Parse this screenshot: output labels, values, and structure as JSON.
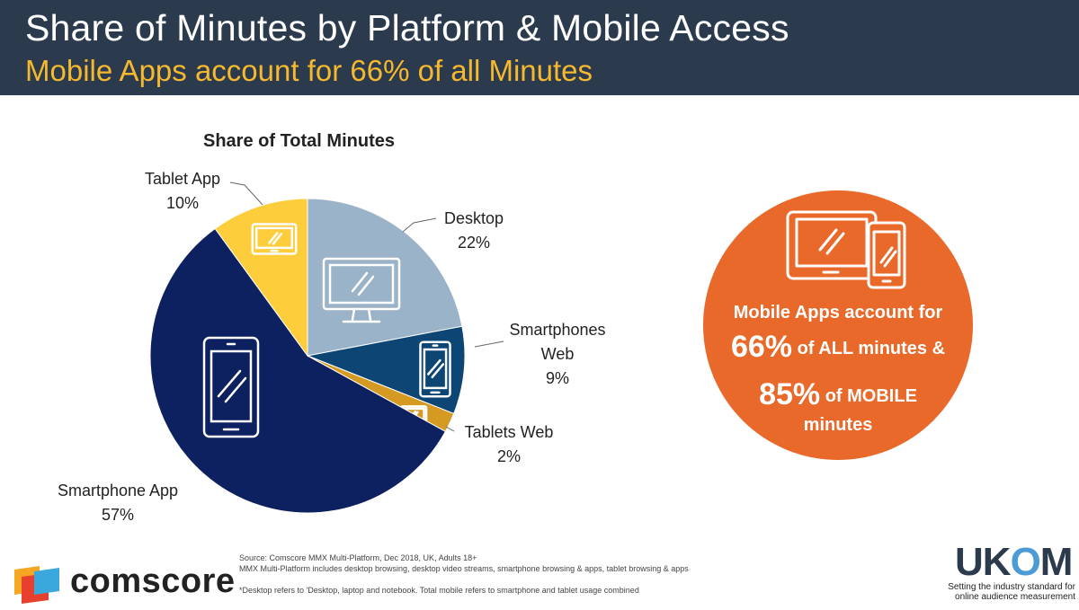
{
  "header": {
    "title": "Share of Minutes by Platform & Mobile Access",
    "subtitle": "Mobile Apps account for 66% of all Minutes"
  },
  "chart_data": {
    "type": "pie",
    "title": "Share of Total Minutes",
    "slices": [
      {
        "name": "Desktop",
        "value": 22,
        "label_lines": [
          "Desktop",
          "22%"
        ],
        "color": "#9bb3c8",
        "icon": "desktop-monitor-icon"
      },
      {
        "name": "Smartphones Web",
        "value": 9,
        "label_lines": [
          "Smartphones",
          "Web",
          "9%"
        ],
        "color": "#0d4674",
        "icon": "smartphone-icon"
      },
      {
        "name": "Tablets Web",
        "value": 2,
        "label_lines": [
          "Tablets Web",
          "2%"
        ],
        "color": "#d49a22",
        "icon": "tablet-icon"
      },
      {
        "name": "Smartphone App",
        "value": 57,
        "label_lines": [
          "Smartphone App",
          "57%"
        ],
        "color": "#0d2060",
        "icon": "smartphone-icon"
      },
      {
        "name": "Tablet App",
        "value": 10,
        "label_lines": [
          "Tablet App",
          "10%"
        ],
        "color": "#fdcd3c",
        "icon": "tablet-icon"
      }
    ]
  },
  "callout": {
    "line1": "Mobile Apps account for",
    "line2_big": "66%",
    "line2_rest": " of ALL minutes &",
    "line3_big": "85%",
    "line3_rest": " of MOBILE",
    "line4": "minutes",
    "color": "#e8692a",
    "icon": "tablet-and-phone-icon"
  },
  "footer": {
    "source_line1": "Source: Comscore MMX Multi-Platform,  Dec 2018, UK, Adults 18+",
    "source_line2": "MMX Multi-Platform includes desktop browsing, desktop video streams, smartphone browsing & apps, tablet browsing & apps",
    "footnote": "*Desktop refers to 'Desktop, laptop and notebook. Total mobile refers to smartphone and tablet usage combined",
    "comscore_text": "comscore",
    "ukom_text_a": "UK",
    "ukom_text_o": "O",
    "ukom_text_m": "M",
    "ukom_tagline": "Setting the industry standard for online audience measurement"
  }
}
